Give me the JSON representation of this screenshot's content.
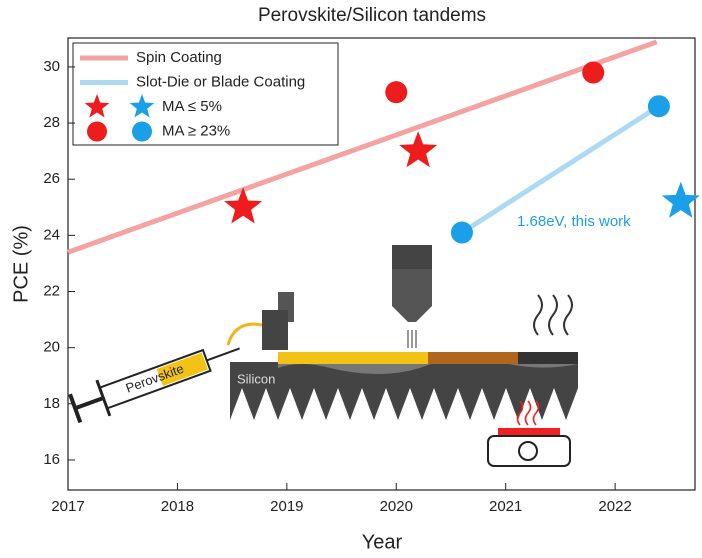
{
  "chart_data": {
    "type": "line",
    "title": "Perovskite/Silicon tandems",
    "x_label": "Year",
    "y_label": "PCE (%)",
    "xlim": [
      2017,
      2022.73
    ],
    "ylim": [
      14.93,
      31.03
    ],
    "xticks": [
      2017,
      2018,
      2019,
      2020,
      2021,
      2022
    ],
    "yticks": [
      16,
      18,
      20,
      22,
      24,
      26,
      28,
      30
    ],
    "series": [
      {
        "name": "Spin Coating",
        "style": "line",
        "color": "#f4a3a3",
        "x": [
          2017,
          2022.38
        ],
        "values": [
          23.4,
          30.89
        ]
      },
      {
        "name": "Slot-Die or Blade Coating",
        "style": "line",
        "color": "#addaf2",
        "x": [
          2020.6,
          2022.4
        ],
        "values": [
          24.1,
          28.6
        ]
      },
      {
        "name": "MA ≤ 5%",
        "style": "star",
        "x": [
          2018.6,
          2020.2,
          2022.6
        ],
        "values": [
          25.0,
          27.0,
          25.2
        ],
        "point_colors": [
          "#ee1c1c",
          "#ee1c1c",
          "#1a9fe8"
        ]
      },
      {
        "name": "MA ≥ 23%",
        "style": "circle",
        "x": [
          2020.0,
          2021.8,
          2020.6,
          2022.4
        ],
        "values": [
          29.1,
          29.8,
          24.1,
          28.6
        ],
        "point_colors": [
          "#ee1c1c",
          "#ee1c1c",
          "#1a9fe8",
          "#1a9fe8"
        ]
      }
    ],
    "annotations": [
      {
        "text": "1.68eV, this work",
        "color": "#1a9fe8"
      }
    ],
    "illustration_labels": [
      "Perovskite",
      "Silicon"
    ]
  }
}
